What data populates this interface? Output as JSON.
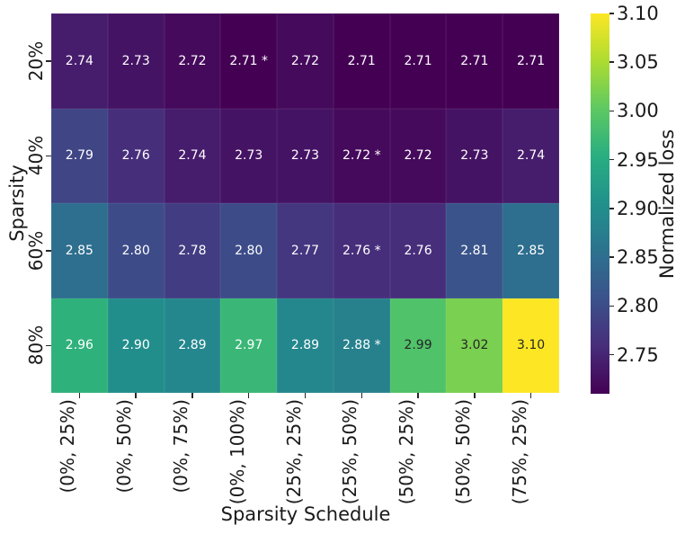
{
  "chart_data": {
    "type": "heatmap",
    "xlabel": "Sparsity Schedule",
    "ylabel": "Sparsity",
    "colorbar_label": "Normalized loss",
    "x_categories": [
      "(0%, 25%)",
      "(0%, 50%)",
      "(0%, 75%)",
      "(0%, 100%)",
      "(25%, 25%)",
      "(25%, 50%)",
      "(50%, 25%)",
      "(50%, 50%)",
      "(75%, 25%)"
    ],
    "y_categories": [
      "20%",
      "40%",
      "60%",
      "80%"
    ],
    "values": [
      [
        2.74,
        2.73,
        2.72,
        2.71,
        2.72,
        2.71,
        2.71,
        2.71,
        2.71
      ],
      [
        2.79,
        2.76,
        2.74,
        2.73,
        2.73,
        2.72,
        2.72,
        2.73,
        2.74
      ],
      [
        2.85,
        2.8,
        2.78,
        2.8,
        2.77,
        2.76,
        2.76,
        2.81,
        2.85
      ],
      [
        2.96,
        2.9,
        2.89,
        2.97,
        2.89,
        2.88,
        2.99,
        3.02,
        3.1
      ]
    ],
    "annotations": [
      [
        "2.74",
        "2.73",
        "2.72",
        "2.71 *",
        "2.72",
        "2.71",
        "2.71",
        "2.71",
        "2.71"
      ],
      [
        "2.79",
        "2.76",
        "2.74",
        "2.73",
        "2.73",
        "2.72 *",
        "2.72",
        "2.73",
        "2.74"
      ],
      [
        "2.85",
        "2.80",
        "2.78",
        "2.80",
        "2.77",
        "2.76 *",
        "2.76",
        "2.81",
        "2.85"
      ],
      [
        "2.96",
        "2.90",
        "2.89",
        "2.97",
        "2.89",
        "2.88 *",
        "2.99",
        "3.02",
        "3.10"
      ]
    ],
    "vmin": 2.71,
    "vmax": 3.1,
    "colormap": "viridis",
    "colorbar_ticks": [
      {
        "label": "3.10",
        "value": 3.1
      },
      {
        "label": "3.05",
        "value": 3.05
      },
      {
        "label": "3.00",
        "value": 3.0
      },
      {
        "label": "2.95",
        "value": 2.95
      },
      {
        "label": "2.90",
        "value": 2.9
      },
      {
        "label": "2.85",
        "value": 2.85
      },
      {
        "label": "2.80",
        "value": 2.8
      },
      {
        "label": "2.75",
        "value": 2.75
      }
    ],
    "viridis_stops": [
      "#440154",
      "#472d7b",
      "#3b528b",
      "#2c728e",
      "#21918c",
      "#28ae80",
      "#5ec962",
      "#addc30",
      "#fde725"
    ],
    "annotation_light_color": "#ffffff",
    "annotation_dark_color": "#262626",
    "legend_position": "right",
    "grid": false
  }
}
